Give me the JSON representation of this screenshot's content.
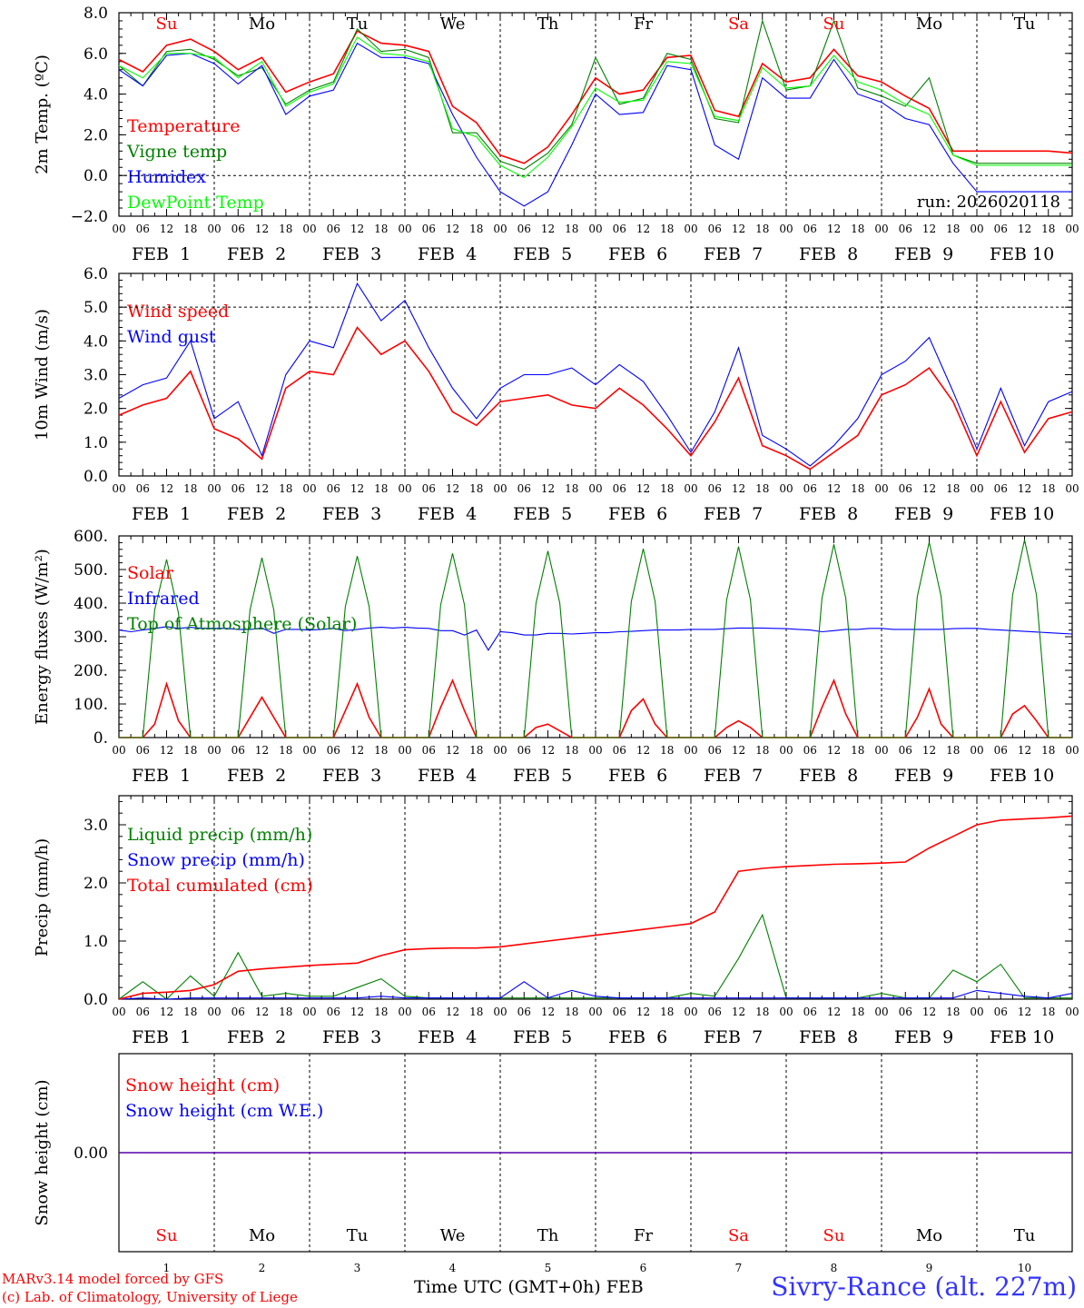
{
  "title": "Sivry-Rance (alt. 227m)",
  "credit_line1": "MARv3.14 model forced by GFS",
  "credit_line2": "(c) Lab. of Climatology, University of Liege",
  "xaxis_title": "Time UTC (GMT+0h)",
  "xaxis_month": "FEB",
  "run_label": "run: 2026020118",
  "hour_ticks": [
    "00",
    "06",
    "12",
    "18"
  ],
  "last_hour_tick": "00",
  "day_labels": [
    "FEB  1",
    "FEB  2",
    "FEB  3",
    "FEB  4",
    "FEB  5",
    "FEB  6",
    "FEB  7",
    "FEB  8",
    "FEB  9",
    "FEB 10"
  ],
  "day_numbers": [
    "1",
    "2",
    "3",
    "4",
    "5",
    "6",
    "7",
    "8",
    "9",
    "10"
  ],
  "weekdays": [
    "Su",
    "Mo",
    "Tu",
    "We",
    "Th",
    "Fr",
    "Sa",
    "Su",
    "Mo",
    "Tu"
  ],
  "weekend_color": "#ff0000",
  "weekday_color": "#000000",
  "chart_data": [
    {
      "type": "line",
      "ylabel": "2m Temp. (ºC)",
      "ylim": [
        -2,
        8
      ],
      "yticks": [
        "−2.0",
        "0.0",
        "2.0",
        "4.0",
        "6.0",
        "8.0"
      ],
      "ytick_values": [
        -2,
        0,
        2,
        4,
        6,
        8
      ],
      "x_hours": [
        0,
        6,
        12,
        18,
        24,
        30,
        36,
        42,
        48,
        54,
        60,
        66,
        72,
        78,
        84,
        90,
        96,
        102,
        108,
        114,
        120,
        126,
        132,
        138,
        144,
        150,
        156,
        162,
        168,
        174,
        180,
        186,
        192,
        198,
        204,
        210,
        216,
        222,
        228,
        234,
        240
      ],
      "legend": [
        "Temperature",
        "Vigne temp",
        "Humidex",
        "DewPoint Temp"
      ],
      "series": [
        {
          "name": "Temperature",
          "color": "#ff0000",
          "values": [
            5.7,
            5.1,
            6.4,
            6.7,
            6.1,
            5.2,
            5.8,
            4.1,
            4.6,
            5.0,
            7.1,
            6.5,
            6.4,
            6.1,
            3.4,
            2.6,
            1.0,
            0.6,
            1.4,
            3.0,
            4.8,
            4.0,
            4.2,
            5.8,
            5.9,
            3.2,
            2.9,
            5.5,
            4.6,
            4.8,
            6.2,
            4.9,
            4.6,
            3.9,
            3.3,
            1.2,
            1.2,
            1.2,
            1.2,
            1.2,
            1.1
          ]
        },
        {
          "name": "Vigne temp",
          "color": "#008000",
          "values": [
            5.4,
            4.4,
            6.1,
            6.2,
            5.7,
            4.9,
            5.3,
            3.5,
            4.2,
            4.6,
            7.2,
            6.1,
            6.2,
            5.8,
            2.1,
            2.1,
            0.7,
            0.3,
            1.1,
            2.5,
            5.8,
            3.5,
            3.8,
            6.0,
            5.7,
            2.8,
            2.6,
            7.6,
            4.2,
            4.4,
            7.6,
            4.3,
            3.9,
            3.4,
            4.8,
            1.0,
            0.6,
            0.6,
            0.6,
            0.6,
            0.6
          ]
        },
        {
          "name": "Humidex",
          "color": "#0000ff",
          "values": [
            5.2,
            4.4,
            5.9,
            6.0,
            5.5,
            4.5,
            5.4,
            3.0,
            3.9,
            4.2,
            6.5,
            5.8,
            5.8,
            5.5,
            3.0,
            0.9,
            -0.8,
            -1.5,
            -0.8,
            1.5,
            4.0,
            3.0,
            3.1,
            5.4,
            5.2,
            1.5,
            0.8,
            4.8,
            3.8,
            3.8,
            5.7,
            4.0,
            3.6,
            2.8,
            2.5,
            0.6,
            -0.8,
            -0.8,
            -0.8,
            -0.8,
            -0.8
          ]
        },
        {
          "name": "DewPoint Temp",
          "color": "#00ff00",
          "values": [
            5.4,
            4.8,
            6.0,
            6.0,
            5.8,
            4.8,
            5.6,
            3.4,
            4.1,
            4.5,
            6.8,
            6.0,
            5.9,
            5.6,
            2.3,
            1.9,
            0.5,
            -0.1,
            0.9,
            2.4,
            4.3,
            3.6,
            3.7,
            5.6,
            5.5,
            2.9,
            2.7,
            5.3,
            4.3,
            4.4,
            5.9,
            4.6,
            4.2,
            3.5,
            3.0,
            1.0,
            0.5,
            0.5,
            0.5,
            0.5,
            0.5
          ]
        }
      ]
    },
    {
      "type": "line",
      "ylabel": "10m Wind (m/s)",
      "ylim": [
        0,
        6
      ],
      "yticks": [
        "0.0",
        "1.0",
        "2.0",
        "3.0",
        "4.0",
        "5.0",
        "6.0"
      ],
      "ytick_values": [
        0,
        1,
        2,
        3,
        4,
        5,
        6
      ],
      "x_hours": [
        0,
        6,
        12,
        18,
        24,
        30,
        36,
        42,
        48,
        54,
        60,
        66,
        72,
        78,
        84,
        90,
        96,
        102,
        108,
        114,
        120,
        126,
        132,
        138,
        144,
        150,
        156,
        162,
        168,
        174,
        180,
        186,
        192,
        198,
        204,
        210,
        216,
        222,
        228,
        234,
        240
      ],
      "legend": [
        "Wind speed",
        "Wind gust"
      ],
      "series": [
        {
          "name": "Wind speed",
          "color": "#ff0000",
          "values": [
            1.8,
            2.1,
            2.3,
            3.1,
            1.4,
            1.1,
            0.5,
            2.6,
            3.1,
            3.0,
            4.4,
            3.6,
            4.0,
            3.1,
            1.9,
            1.5,
            2.2,
            2.3,
            2.4,
            2.1,
            2.0,
            2.6,
            2.1,
            1.4,
            0.6,
            1.6,
            2.9,
            0.9,
            0.6,
            0.2,
            0.7,
            1.2,
            2.4,
            2.7,
            3.2,
            2.2,
            0.6,
            2.2,
            0.7,
            1.7,
            1.9
          ]
        },
        {
          "name": "Wind gust",
          "color": "#0000ff",
          "values": [
            2.3,
            2.7,
            2.9,
            4.0,
            1.7,
            2.2,
            0.6,
            3.0,
            4.0,
            3.8,
            5.7,
            4.6,
            5.2,
            3.8,
            2.6,
            1.7,
            2.6,
            3.0,
            3.0,
            3.2,
            2.7,
            3.3,
            2.8,
            1.8,
            0.7,
            1.9,
            3.8,
            1.2,
            0.8,
            0.3,
            0.9,
            1.7,
            3.0,
            3.4,
            4.1,
            2.5,
            0.8,
            2.6,
            0.9,
            2.2,
            2.5
          ]
        }
      ]
    },
    {
      "type": "line",
      "ylabel": "Energy fluxes (W/m²)",
      "ylim": [
        0,
        600
      ],
      "yticks": [
        "0.",
        "100.",
        "200.",
        "300.",
        "400.",
        "500.",
        "600."
      ],
      "ytick_values": [
        0,
        100,
        200,
        300,
        400,
        500,
        600
      ],
      "x_hours": [
        0,
        3,
        6,
        9,
        12,
        15,
        18,
        21,
        24,
        27,
        30,
        33,
        36,
        39,
        42,
        45,
        48,
        51,
        54,
        57,
        60,
        63,
        66,
        69,
        72,
        75,
        78,
        81,
        84,
        87,
        90,
        93,
        96,
        99,
        102,
        105,
        108,
        111,
        114,
        117,
        120,
        123,
        126,
        129,
        132,
        135,
        138,
        141,
        144,
        147,
        150,
        153,
        156,
        159,
        162,
        165,
        168,
        171,
        174,
        177,
        180,
        183,
        186,
        189,
        192,
        195,
        198,
        201,
        204,
        207,
        210,
        213,
        216,
        219,
        222,
        225,
        228,
        231,
        234,
        237,
        240
      ],
      "legend": [
        "Solar",
        "Infrared",
        "Top of Atmosphere (Solar)"
      ],
      "series": [
        {
          "name": "Solar",
          "color": "#ff0000",
          "values": [
            0,
            0,
            0,
            40,
            160,
            50,
            0,
            0,
            0,
            0,
            0,
            60,
            120,
            60,
            0,
            0,
            0,
            0,
            0,
            80,
            160,
            60,
            0,
            0,
            0,
            0,
            0,
            90,
            170,
            80,
            0,
            0,
            0,
            0,
            0,
            30,
            40,
            20,
            0,
            0,
            0,
            0,
            0,
            80,
            115,
            40,
            0,
            0,
            0,
            0,
            0,
            30,
            50,
            30,
            0,
            0,
            0,
            0,
            0,
            90,
            170,
            70,
            0,
            0,
            0,
            0,
            0,
            60,
            145,
            40,
            0,
            0,
            0,
            0,
            0,
            70,
            95,
            50,
            0,
            0,
            0
          ]
        },
        {
          "name": "Infrared",
          "color": "#0000ff",
          "values": [
            320,
            315,
            320,
            325,
            330,
            325,
            328,
            325,
            325,
            325,
            322,
            322,
            326,
            310,
            322,
            322,
            320,
            322,
            325,
            318,
            322,
            326,
            328,
            326,
            328,
            326,
            325,
            318,
            318,
            305,
            320,
            260,
            315,
            312,
            305,
            305,
            310,
            310,
            308,
            310,
            312,
            312,
            315,
            316,
            318,
            320,
            320,
            320,
            322,
            322,
            322,
            324,
            326,
            326,
            326,
            325,
            324,
            322,
            320,
            315,
            318,
            322,
            322,
            325,
            325,
            322,
            322,
            322,
            322,
            322,
            324,
            325,
            325,
            322,
            320,
            318,
            316,
            314,
            312,
            310,
            308
          ]
        },
        {
          "name": "Top of Atmosphere (Solar)",
          "color": "#008000",
          "values": [
            0,
            0,
            0,
            380,
            530,
            370,
            0,
            0,
            0,
            0,
            0,
            380,
            535,
            380,
            0,
            0,
            0,
            0,
            0,
            390,
            540,
            390,
            0,
            0,
            0,
            0,
            0,
            395,
            548,
            395,
            0,
            0,
            0,
            0,
            0,
            400,
            555,
            400,
            0,
            0,
            0,
            0,
            0,
            405,
            562,
            405,
            0,
            0,
            0,
            0,
            0,
            410,
            568,
            410,
            0,
            0,
            0,
            0,
            0,
            415,
            575,
            415,
            0,
            0,
            0,
            0,
            0,
            420,
            582,
            420,
            0,
            0,
            0,
            0,
            0,
            425,
            588,
            425,
            0,
            0,
            0
          ]
        }
      ]
    },
    {
      "type": "line",
      "ylabel": "Precip (mm/h)",
      "ylim": [
        0,
        3.5
      ],
      "yticks": [
        "0.0",
        "1.0",
        "2.0",
        "3.0"
      ],
      "ytick_values": [
        0,
        1,
        2,
        3
      ],
      "x_hours": [
        0,
        6,
        12,
        18,
        24,
        30,
        36,
        42,
        48,
        54,
        60,
        66,
        72,
        78,
        84,
        90,
        96,
        102,
        108,
        114,
        120,
        126,
        132,
        138,
        144,
        150,
        156,
        162,
        168,
        174,
        180,
        186,
        192,
        198,
        204,
        210,
        216,
        222,
        228,
        234,
        240
      ],
      "legend": [
        "Liquid precip (mm/h)",
        "Snow precip (mm/h)",
        "Total cumulated (cm)"
      ],
      "series": [
        {
          "name": "Liquid precip (mm/h)",
          "color": "#008000",
          "values": [
            0,
            0.3,
            0,
            0.4,
            0.05,
            0.8,
            0.05,
            0.1,
            0.05,
            0.05,
            0.2,
            0.35,
            0.05,
            0.02,
            0.02,
            0.02,
            0.02,
            0.02,
            0.02,
            0.02,
            0.02,
            0.02,
            0.02,
            0.02,
            0.1,
            0.05,
            0.7,
            1.45,
            0.02,
            0.02,
            0.02,
            0.02,
            0.1,
            0.02,
            0.02,
            0.5,
            0.3,
            0.6,
            0.02,
            0.02,
            0.02
          ]
        },
        {
          "name": "Snow precip (mm/h)",
          "color": "#0000ff",
          "values": [
            0,
            0.02,
            0,
            0.02,
            0.02,
            0.02,
            0.02,
            0.02,
            0.02,
            0.02,
            0.02,
            0.05,
            0.02,
            0.02,
            0.02,
            0.02,
            0.02,
            0.3,
            0.02,
            0.15,
            0.05,
            0.02,
            0.02,
            0.02,
            0.02,
            0.02,
            0.02,
            0.02,
            0.02,
            0.02,
            0.02,
            0.02,
            0.02,
            0.02,
            0.02,
            0.02,
            0.15,
            0.1,
            0.05,
            0.02,
            0.1
          ]
        },
        {
          "name": "Total cumulated (cm)",
          "color": "#ff0000",
          "values": [
            0,
            0.1,
            0.12,
            0.15,
            0.25,
            0.48,
            0.52,
            0.55,
            0.58,
            0.6,
            0.62,
            0.75,
            0.85,
            0.87,
            0.88,
            0.88,
            0.9,
            0.95,
            1.0,
            1.05,
            1.1,
            1.15,
            1.2,
            1.25,
            1.3,
            1.5,
            2.2,
            2.25,
            2.28,
            2.3,
            2.32,
            2.33,
            2.34,
            2.36,
            2.6,
            2.8,
            3.0,
            3.08,
            3.1,
            3.12,
            3.15
          ]
        }
      ]
    },
    {
      "type": "line",
      "ylabel": "Snow height (cm)",
      "ylim": [
        -1,
        1
      ],
      "yticks": [
        "0.00"
      ],
      "ytick_values": [
        0
      ],
      "x_hours": [
        0,
        240
      ],
      "legend": [
        "Snow height (cm)",
        "Snow height (cm W.E.)"
      ],
      "series": [
        {
          "name": "Snow height (cm)",
          "color": "#ff0000",
          "values": [
            0,
            0
          ]
        },
        {
          "name": "Snow height (cm W.E.)",
          "color": "#0000ff",
          "values": [
            0,
            0
          ]
        }
      ]
    }
  ]
}
